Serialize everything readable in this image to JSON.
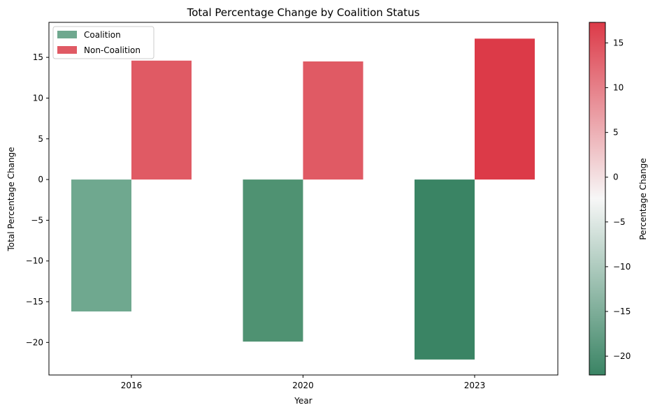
{
  "chart_data": {
    "type": "bar",
    "title": "Total Percentage Change by Coalition Status",
    "xlabel": "Year",
    "ylabel": "Total Percentage Change",
    "categories": [
      "2016",
      "2020",
      "2023"
    ],
    "series": [
      {
        "name": "Coalition",
        "values": [
          -16.2,
          -19.9,
          -22.1
        ],
        "colors": [
          "#6fa88f",
          "#4f9272",
          "#3a8464"
        ],
        "legend_color": "#6fa88f"
      },
      {
        "name": "Non-Coalition",
        "values": [
          14.6,
          14.5,
          17.3
        ],
        "colors": [
          "#e05a64",
          "#e05a64",
          "#dc3a48"
        ],
        "legend_color": "#e05a64"
      }
    ],
    "ylim": [
      -24,
      19.3
    ],
    "yticks": [
      -20,
      -15,
      -10,
      -5,
      0,
      5,
      10,
      15
    ],
    "legend_position": "upper-left",
    "grid": false,
    "colorbar": {
      "label": "Percentage Change",
      "range": [
        -22.1,
        17.3
      ],
      "ticks": [
        -20,
        -15,
        -10,
        -5,
        0,
        5,
        10,
        15
      ],
      "colors": [
        "#3a8464",
        "#f7f7f7",
        "#dc3a48"
      ]
    }
  }
}
